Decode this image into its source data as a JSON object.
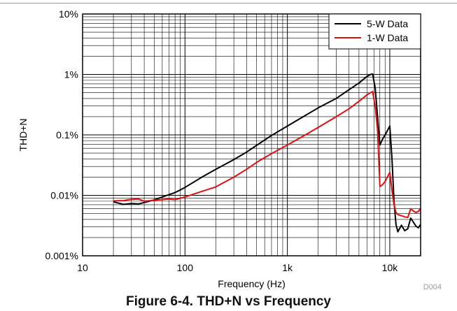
{
  "figure_code": "D004",
  "caption": "Figure 6-4. THD+N vs Frequency",
  "chart_data": {
    "type": "line",
    "title": "",
    "xlabel": "Frequency (Hz)",
    "ylabel": "THD+N",
    "xscale": "log",
    "yscale": "log",
    "xlim": [
      10,
      20000
    ],
    "ylim": [
      0.001,
      10
    ],
    "grid": true,
    "legend_position": "top-right",
    "x_ticks": [
      10,
      100,
      1000,
      10000
    ],
    "x_tick_labels": [
      "10",
      "100",
      "1k",
      "10k"
    ],
    "y_ticks": [
      0.001,
      0.01,
      0.1,
      1,
      10
    ],
    "y_tick_labels": [
      "0.001%",
      "0.01%",
      "0.1%",
      "1%",
      "10%"
    ],
    "series": [
      {
        "name": "5-W Data",
        "color": "#000000",
        "x": [
          20,
          25,
          30,
          35,
          40,
          50,
          60,
          70,
          80,
          100,
          150,
          200,
          300,
          400,
          500,
          700,
          1000,
          1500,
          2000,
          3000,
          4000,
          5000,
          6000,
          6500,
          6800,
          7200,
          7600,
          8000,
          8500,
          9000,
          10000,
          10500,
          11000,
          11500,
          12000,
          13000,
          14000,
          15000,
          16000,
          17000,
          18000,
          19000,
          20000
        ],
        "y": [
          0.0078,
          0.0071,
          0.0073,
          0.0072,
          0.0076,
          0.0084,
          0.0094,
          0.0103,
          0.0111,
          0.0135,
          0.0205,
          0.027,
          0.039,
          0.052,
          0.067,
          0.098,
          0.14,
          0.21,
          0.28,
          0.4,
          0.56,
          0.72,
          0.93,
          1.0,
          1.02,
          0.6,
          0.2,
          0.068,
          0.085,
          0.1,
          0.14,
          0.04,
          0.008,
          0.0033,
          0.0025,
          0.0032,
          0.0026,
          0.0028,
          0.0042,
          0.0036,
          0.0031,
          0.0029,
          0.0033
        ]
      },
      {
        "name": "1-W Data",
        "color": "#e01010",
        "x": [
          20,
          25,
          30,
          35,
          40,
          50,
          60,
          70,
          80,
          100,
          150,
          200,
          300,
          400,
          500,
          700,
          1000,
          1500,
          2000,
          3000,
          4000,
          5000,
          6000,
          6500,
          6800,
          7200,
          7600,
          8000,
          8500,
          9000,
          10000,
          10500,
          11000,
          11500,
          12000,
          13000,
          14000,
          15000,
          16000,
          17000,
          18000,
          19000,
          20000
        ],
        "y": [
          0.0081,
          0.0082,
          0.0086,
          0.0087,
          0.008,
          0.0083,
          0.0085,
          0.0087,
          0.0085,
          0.0094,
          0.0118,
          0.0138,
          0.02,
          0.027,
          0.035,
          0.049,
          0.068,
          0.1,
          0.133,
          0.2,
          0.27,
          0.36,
          0.46,
          0.5,
          0.52,
          0.3,
          0.12,
          0.014,
          0.015,
          0.017,
          0.024,
          0.012,
          0.007,
          0.0052,
          0.0048,
          0.0046,
          0.0044,
          0.0043,
          0.006,
          0.0055,
          0.0052,
          0.0054,
          0.0061
        ]
      }
    ]
  }
}
